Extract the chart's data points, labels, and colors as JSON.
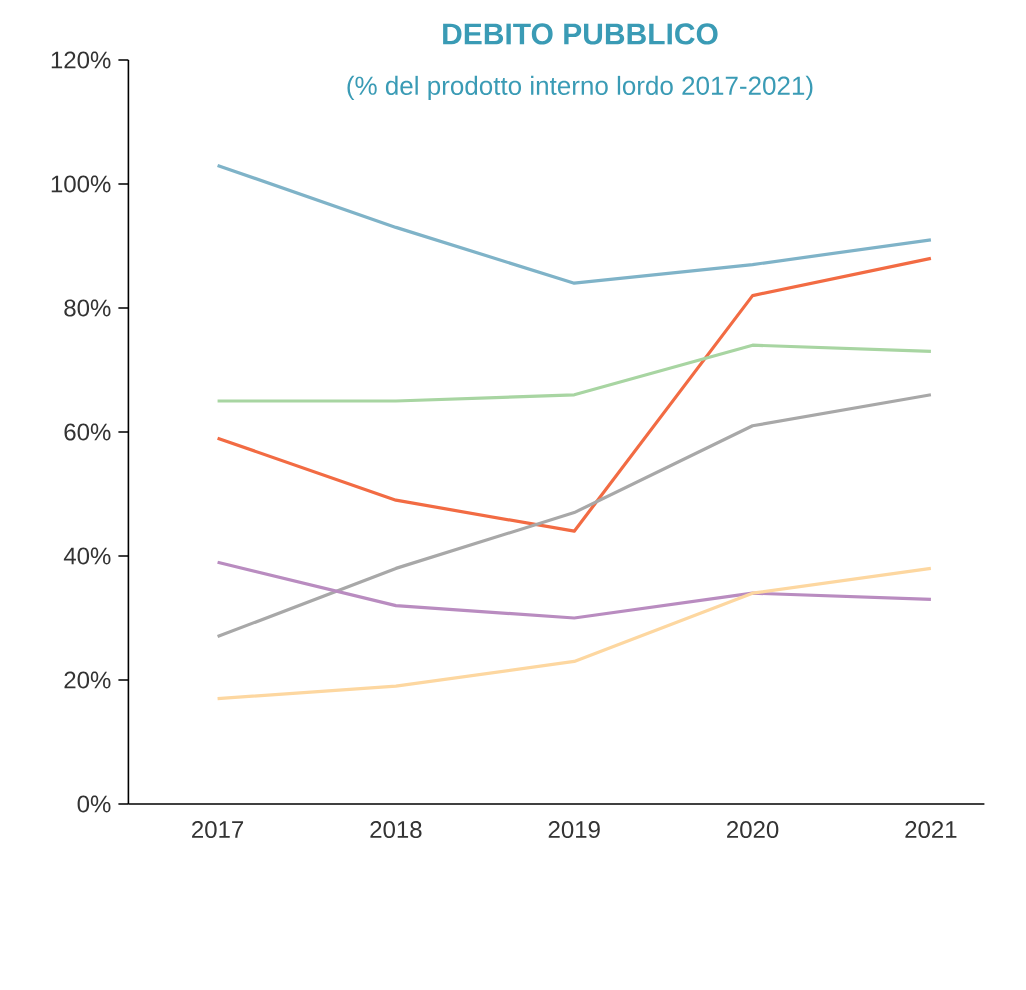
{
  "chart_data": {
    "type": "line",
    "title": "DEBITO PUBBLICO",
    "subtitle": "(% del prodotto interno lordo 2017-2021)",
    "categories": [
      "2017",
      "2018",
      "2019",
      "2020",
      "2021"
    ],
    "series": [
      {
        "color": "#7fb3c8",
        "values": [
          103,
          93,
          84,
          87,
          91
        ]
      },
      {
        "color": "#f26b43",
        "values": [
          59,
          49,
          44,
          82,
          88
        ]
      },
      {
        "color": "#a8d5a2",
        "values": [
          65,
          65,
          66,
          74,
          73
        ]
      },
      {
        "color": "#a8a8a8",
        "values": [
          27,
          38,
          47,
          61,
          66
        ]
      },
      {
        "color": "#b98cc0",
        "values": [
          39,
          32,
          30,
          34,
          33
        ]
      },
      {
        "color": "#fdd7a0",
        "values": [
          17,
          19,
          23,
          34,
          38
        ]
      }
    ],
    "ylim": [
      0,
      120
    ],
    "yticks": [
      {
        "value": 0,
        "label": "0%"
      },
      {
        "value": 20,
        "label": "20%"
      },
      {
        "value": 40,
        "label": "40%"
      },
      {
        "value": 60,
        "label": "60%"
      },
      {
        "value": 80,
        "label": "80%"
      },
      {
        "value": 100,
        "label": "100%"
      },
      {
        "value": 120,
        "label": "120%"
      }
    ]
  }
}
